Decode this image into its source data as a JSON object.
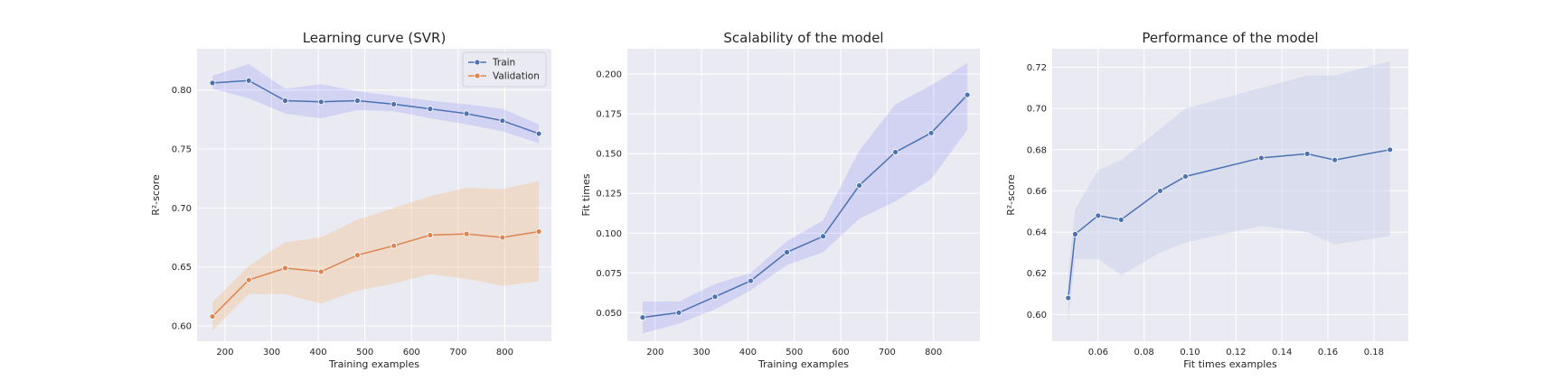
{
  "figure": {
    "background": "#ffffff",
    "plot_bg": "#eaeaf2",
    "grid_color": "#ffffff"
  },
  "chart_data": [
    {
      "type": "line",
      "title": "Learning curve (SVR)",
      "xlabel": "Training examples",
      "ylabel": "R²-score",
      "xlim": [
        140,
        900
      ],
      "ylim": [
        0.587,
        0.835
      ],
      "xticks": [
        200,
        300,
        400,
        500,
        600,
        700,
        800
      ],
      "yticks": [
        0.6,
        0.65,
        0.7,
        0.75,
        0.8
      ],
      "ytick_labels": [
        "0.60",
        "0.65",
        "0.70",
        "0.75",
        "0.80"
      ],
      "grid": true,
      "legend": "top-right",
      "x": [
        173,
        251,
        329,
        406,
        484,
        562,
        640,
        718,
        795,
        873
      ],
      "series": [
        {
          "name": "Train",
          "color": "#4c72b0",
          "band_color": "#0000ff",
          "values": [
            0.806,
            0.808,
            0.791,
            0.79,
            0.791,
            0.788,
            0.784,
            0.78,
            0.774,
            0.763
          ],
          "upper": [
            0.812,
            0.822,
            0.801,
            0.805,
            0.799,
            0.795,
            0.791,
            0.788,
            0.784,
            0.771
          ],
          "lower": [
            0.801,
            0.793,
            0.78,
            0.776,
            0.783,
            0.782,
            0.776,
            0.771,
            0.765,
            0.755
          ]
        },
        {
          "name": "Validation",
          "color": "#dd8452",
          "band_color": "#f5c89a",
          "values": [
            0.608,
            0.639,
            0.649,
            0.646,
            0.66,
            0.668,
            0.677,
            0.678,
            0.675,
            0.68
          ],
          "upper": [
            0.62,
            0.651,
            0.671,
            0.675,
            0.69,
            0.7,
            0.71,
            0.717,
            0.716,
            0.723
          ],
          "lower": [
            0.596,
            0.627,
            0.627,
            0.619,
            0.63,
            0.636,
            0.644,
            0.64,
            0.634,
            0.638
          ]
        }
      ]
    },
    {
      "type": "line",
      "title": "Scalability of the model",
      "xlabel": "Training examples",
      "ylabel": "Fit times",
      "xlim": [
        140,
        900
      ],
      "ylim": [
        0.032,
        0.216
      ],
      "xticks": [
        200,
        300,
        400,
        500,
        600,
        700,
        800
      ],
      "yticks": [
        0.05,
        0.075,
        0.1,
        0.125,
        0.15,
        0.175,
        0.2
      ],
      "ytick_labels": [
        "0.050",
        "0.075",
        "0.100",
        "0.125",
        "0.150",
        "0.175",
        "0.200"
      ],
      "grid": true,
      "x": [
        173,
        251,
        329,
        406,
        484,
        562,
        640,
        718,
        795,
        873
      ],
      "series": [
        {
          "color": "#4c72b0",
          "band_color": "#0000ff",
          "values": [
            0.047,
            0.05,
            0.06,
            0.07,
            0.088,
            0.098,
            0.13,
            0.151,
            0.163,
            0.187
          ],
          "upper": [
            0.057,
            0.057,
            0.068,
            0.075,
            0.095,
            0.108,
            0.152,
            0.181,
            0.193,
            0.207
          ],
          "lower": [
            0.037,
            0.043,
            0.052,
            0.064,
            0.08,
            0.088,
            0.109,
            0.12,
            0.134,
            0.165
          ]
        }
      ]
    },
    {
      "type": "line",
      "title": "Performance of the model",
      "xlabel": "Fit times examples",
      "ylabel": "R²-score",
      "xlim": [
        0.04,
        0.195
      ],
      "ylim": [
        0.587,
        0.729
      ],
      "xticks": [
        0.06,
        0.08,
        0.1,
        0.12,
        0.14,
        0.16,
        0.18
      ],
      "xtick_labels": [
        "0.06",
        "0.08",
        "0.10",
        "0.12",
        "0.14",
        "0.16",
        "0.18"
      ],
      "yticks": [
        0.6,
        0.62,
        0.64,
        0.66,
        0.68,
        0.7,
        0.72
      ],
      "ytick_labels": [
        "0.60",
        "0.62",
        "0.64",
        "0.66",
        "0.68",
        "0.70",
        "0.72"
      ],
      "grid": true,
      "x": [
        0.047,
        0.05,
        0.06,
        0.07,
        0.087,
        0.098,
        0.131,
        0.151,
        0.163,
        0.187
      ],
      "series": [
        {
          "color": "#4c72b0",
          "band_color": "#c5cee8",
          "values": [
            0.608,
            0.639,
            0.648,
            0.646,
            0.66,
            0.667,
            0.676,
            0.678,
            0.675,
            0.68
          ],
          "upper": [
            0.62,
            0.651,
            0.67,
            0.675,
            0.69,
            0.7,
            0.71,
            0.716,
            0.716,
            0.723
          ],
          "lower": [
            0.596,
            0.627,
            0.627,
            0.619,
            0.63,
            0.635,
            0.643,
            0.64,
            0.634,
            0.638
          ]
        }
      ]
    }
  ]
}
